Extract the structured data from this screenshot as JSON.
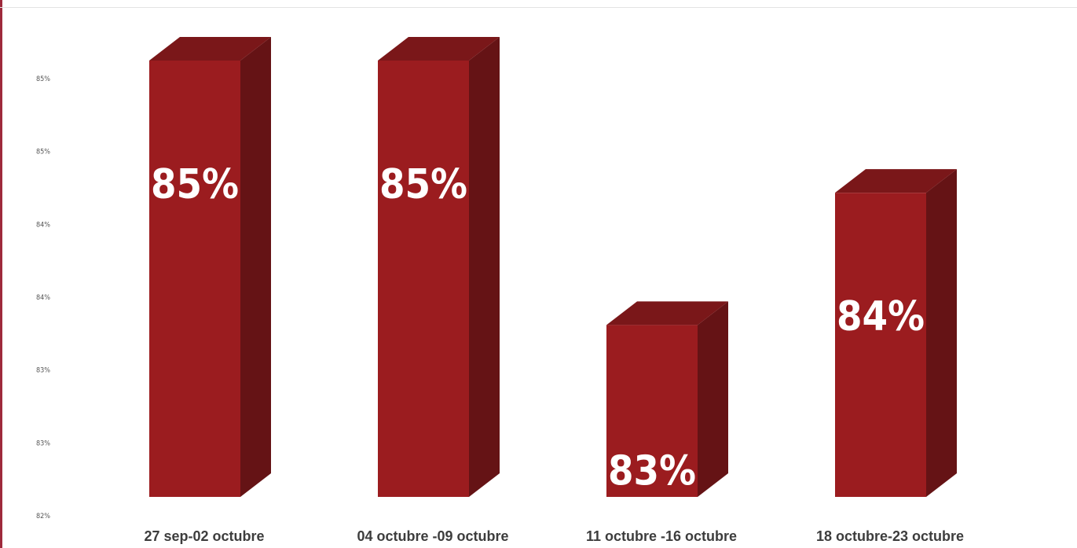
{
  "chart_data": {
    "type": "bar",
    "title": "",
    "xlabel": "",
    "ylabel": "",
    "categories": [
      "27 sep-02 octubre",
      "04 octubre -09 octubre",
      "11 octubre -16 octubre",
      "18 octubre-23 octubre"
    ],
    "values": [
      85.3,
      85.3,
      83.3,
      84.3
    ],
    "data_labels": [
      "85%",
      "85%",
      "83%",
      "84%"
    ],
    "y_tick_labels": [
      "85%",
      "85%",
      "84%",
      "84%",
      "83%",
      "83%",
      "82%"
    ],
    "ylim": [
      82,
      85.5
    ],
    "grid": false,
    "legend": "none",
    "style": "3d-bar",
    "colors": {
      "bar_front": "#9b1c1f",
      "bar_side": "#651315",
      "bar_top": "#7a1719",
      "label_text": "#ffffff",
      "axis_text": "#3d3d3d",
      "accent": "#9e2a3c"
    }
  }
}
